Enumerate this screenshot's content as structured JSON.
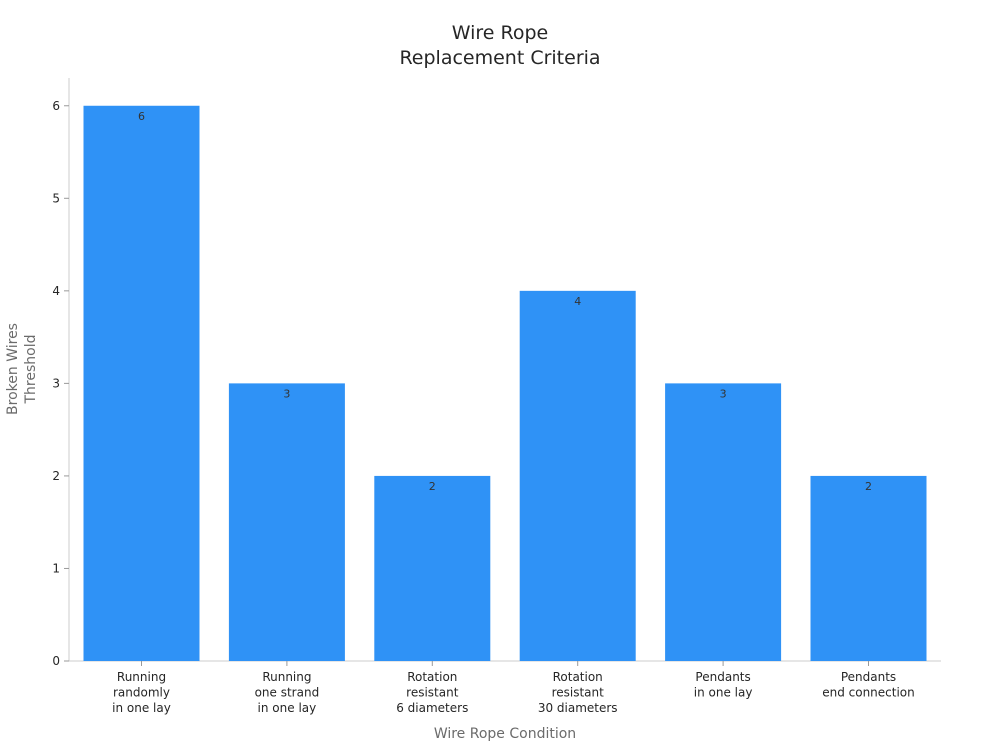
{
  "chart_data": {
    "type": "bar",
    "title": [
      "Wire Rope",
      "Replacement Criteria"
    ],
    "xlabel": "Wire Rope Condition",
    "ylabel": [
      "Broken Wires",
      "Threshold"
    ],
    "categories": [
      [
        "Running",
        "randomly",
        "in one lay"
      ],
      [
        "Running",
        "one strand",
        "in one lay"
      ],
      [
        "Rotation",
        "resistant",
        "6 diameters"
      ],
      [
        "Rotation",
        "resistant",
        "30 diameters"
      ],
      [
        "Pendants",
        "in one lay"
      ],
      [
        "Pendants",
        "end connection"
      ]
    ],
    "values": [
      6,
      3,
      2,
      4,
      3,
      2
    ],
    "ylim": [
      0,
      6.3
    ],
    "yticks": [
      0,
      1,
      2,
      3,
      4,
      5,
      6
    ],
    "bar_color": "#2f92f6",
    "grid": false,
    "legend": "none"
  }
}
